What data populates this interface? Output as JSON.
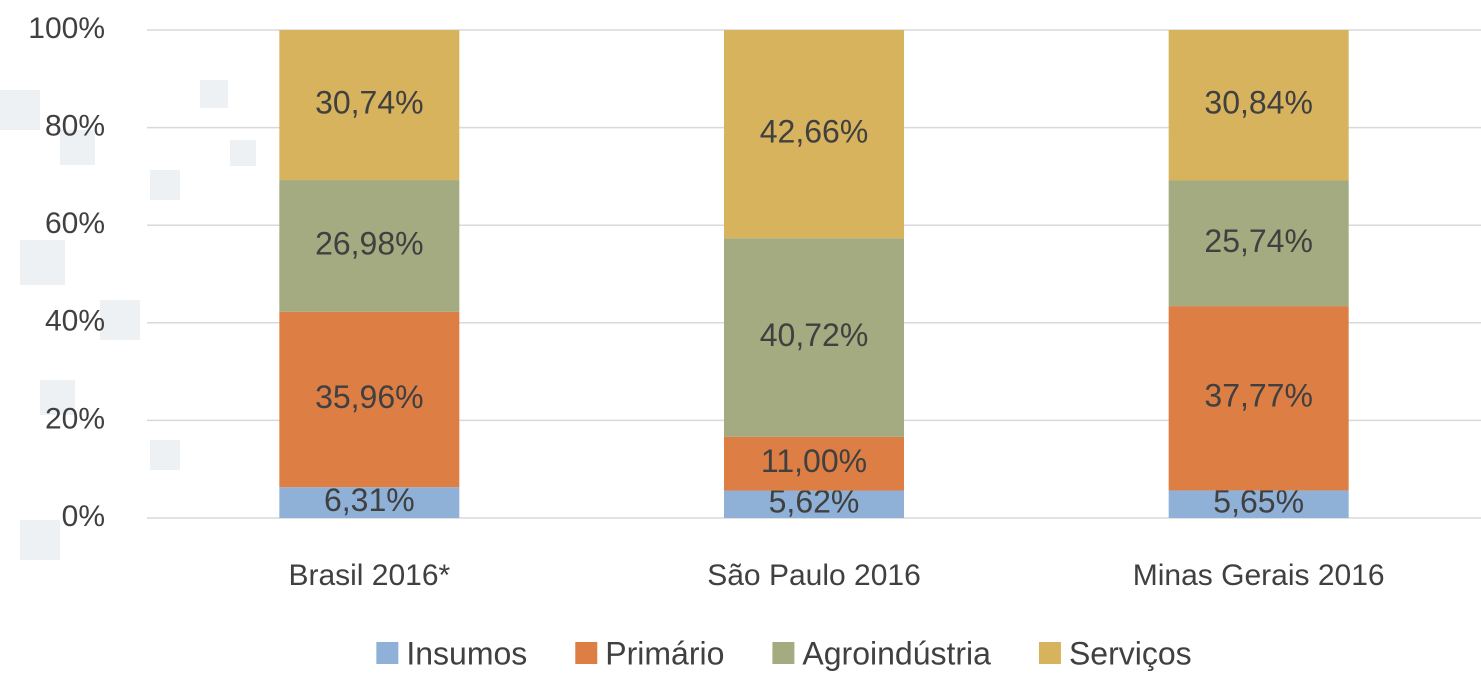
{
  "chart_data": {
    "type": "stacked_bar",
    "categories": [
      "Brasil 2016*",
      "São Paulo 2016",
      "Minas Gerais 2016"
    ],
    "series": [
      {
        "name": "Insumos",
        "color": "#8fb1d7",
        "values": [
          6.31,
          5.62,
          5.65
        ],
        "value_labels": [
          "6,31%",
          "5,62%",
          "5,65%"
        ]
      },
      {
        "name": "Primário",
        "color": "#dd7e45",
        "values": [
          35.96,
          11.0,
          37.77
        ],
        "value_labels": [
          "35,96%",
          "11,00%",
          "37,77%"
        ]
      },
      {
        "name": "Agroindústria",
        "color": "#a4ab81",
        "values": [
          26.98,
          40.72,
          25.74
        ],
        "value_labels": [
          "26,98%",
          "40,72%",
          "25,74%"
        ]
      },
      {
        "name": "Serviços",
        "color": "#d8b35e",
        "values": [
          30.74,
          42.66,
          30.84
        ],
        "value_labels": [
          "30,74%",
          "42,66%",
          "30,84%"
        ]
      }
    ],
    "ylim": [
      0,
      100
    ],
    "yticks": [
      {
        "value": 0,
        "label": "0%"
      },
      {
        "value": 20,
        "label": "20%"
      },
      {
        "value": 40,
        "label": "40%"
      },
      {
        "value": 60,
        "label": "60%"
      },
      {
        "value": 80,
        "label": "80%"
      },
      {
        "value": 100,
        "label": "100%"
      }
    ],
    "grid": true,
    "legend": "bottom"
  }
}
